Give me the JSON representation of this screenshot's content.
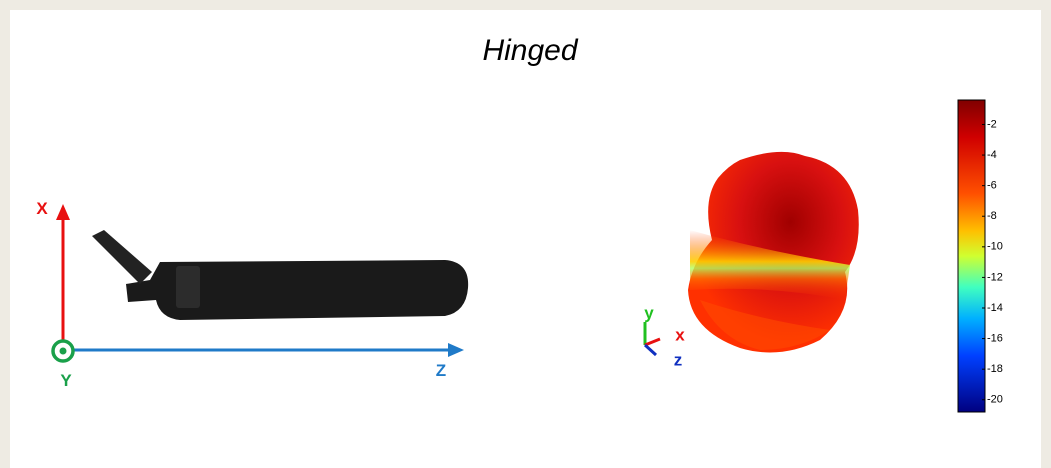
{
  "title": "Hinged",
  "antenna_axes": {
    "x": "X",
    "y": "Y",
    "z": "Z"
  },
  "pattern_axes": {
    "x": "x",
    "y": "y",
    "z": "z"
  },
  "colorbar": {
    "lim": [
      -20.8,
      -0.4
    ],
    "ticks": [
      -2,
      -4,
      -6,
      -8,
      -10,
      -12,
      -14,
      -16,
      -18,
      -20
    ]
  }
}
